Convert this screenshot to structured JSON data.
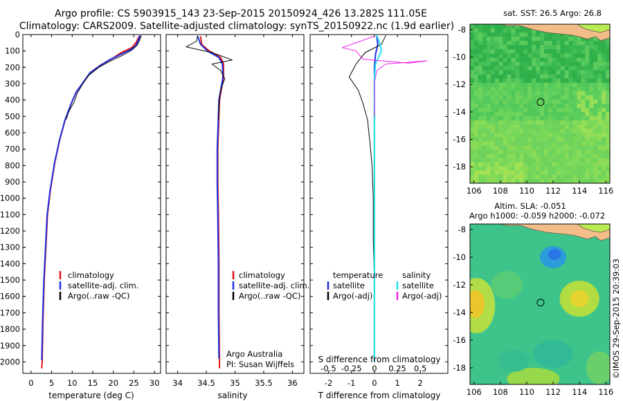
{
  "header": {
    "line1": "Argo profile: CS 5903915_143 23-Sep-2015 20150924_426 13.282S 111.05E",
    "line2": "Climatology: CARS2009. Satellite-adjusted climatology: synTS_20150922.nc (1.9d earlier)"
  },
  "colors": {
    "climatology": "#e01010",
    "satellite": "#1c2fe0",
    "argo": "#000000",
    "satellite_s": "#22e6ee",
    "argo_s": "#f022e8",
    "land": "#f3bd8a",
    "land_green": "#b8ec52"
  },
  "depth_axis": {
    "ticks": [
      0,
      100,
      200,
      300,
      400,
      500,
      600,
      700,
      800,
      900,
      1000,
      1100,
      1200,
      1300,
      1400,
      1500,
      1600,
      1700,
      1800,
      1900,
      2000
    ],
    "range": [
      0,
      2070
    ]
  },
  "chart_data": [
    {
      "type": "line",
      "id": "temperature",
      "xlabel": "temperature (deg C)",
      "xlim": [
        -2,
        31.5
      ],
      "xticks": [
        0,
        5,
        10,
        15,
        20,
        25,
        30
      ],
      "legend": [
        "climatology",
        "satellite-adj. clim.",
        "Argo(..raw -QC)"
      ],
      "series": [
        {
          "name": "climatology",
          "color": "#e01010",
          "width": 2,
          "points": [
            [
              26.3,
              10
            ],
            [
              25.5,
              50
            ],
            [
              24.5,
              80
            ],
            [
              22,
              110
            ],
            [
              19.5,
              150
            ],
            [
              17,
              185
            ],
            [
              14.5,
              230
            ],
            [
              12.5,
              300
            ],
            [
              11,
              350
            ],
            [
              9.8,
              420
            ],
            [
              8.3,
              520
            ],
            [
              7,
              640
            ],
            [
              5.8,
              780
            ],
            [
              4.7,
              950
            ],
            [
              4,
              1100
            ],
            [
              3.6,
              1300
            ],
            [
              3.2,
              1500
            ],
            [
              2.9,
              1750
            ],
            [
              2.7,
              2000
            ],
            [
              2.6,
              2040
            ]
          ]
        },
        {
          "name": "satellite-adj. clim.",
          "color": "#1c2fe0",
          "width": 2,
          "points": [
            [
              26.5,
              5
            ],
            [
              26.2,
              30
            ],
            [
              25.4,
              70
            ],
            [
              24,
              95
            ],
            [
              21.5,
              125
            ],
            [
              19,
              155
            ],
            [
              16.8,
              190
            ],
            [
              14.3,
              235
            ],
            [
              12.3,
              305
            ],
            [
              10.9,
              355
            ],
            [
              9.7,
              425
            ],
            [
              8.2,
              525
            ],
            [
              6.9,
              645
            ],
            [
              5.7,
              785
            ],
            [
              4.6,
              955
            ],
            [
              3.9,
              1105
            ],
            [
              3.5,
              1305
            ],
            [
              3.1,
              1505
            ],
            [
              2.8,
              1755
            ],
            [
              2.6,
              1990
            ]
          ]
        },
        {
          "name": "Argo(..raw -QC)",
          "color": "#000000",
          "width": 1,
          "points": [
            [
              26.8,
              5
            ],
            [
              26.4,
              35
            ],
            [
              25.8,
              65
            ],
            [
              24.5,
              95
            ],
            [
              22,
              130
            ],
            [
              19,
              165
            ],
            [
              16.5,
              200
            ],
            [
              14,
              250
            ],
            [
              12.6,
              300
            ],
            [
              11.2,
              360
            ],
            [
              10.5,
              410
            ],
            [
              9.2,
              470
            ],
            [
              8.5,
              520
            ]
          ]
        }
      ]
    },
    {
      "type": "line",
      "id": "salinity",
      "xlabel": "salinity",
      "xlim": [
        33.8,
        36.2
      ],
      "xticks": [
        34,
        34.5,
        35,
        35.5,
        36
      ],
      "legend": [
        "climatology",
        "satellite-adj. clim.",
        "Argo(..raw -QC)"
      ],
      "annotation": [
        "Argo Australia",
        "PI: Susan Wijffels"
      ],
      "series": [
        {
          "name": "climatology",
          "color": "#e01010",
          "width": 2,
          "points": [
            [
              34.4,
              10
            ],
            [
              34.42,
              60
            ],
            [
              34.55,
              100
            ],
            [
              34.75,
              140
            ],
            [
              34.8,
              180
            ],
            [
              34.8,
              260
            ],
            [
              34.76,
              340
            ],
            [
              34.73,
              400
            ],
            [
              34.72,
              500
            ],
            [
              34.7,
              700
            ],
            [
              34.7,
              900
            ],
            [
              34.71,
              1100
            ],
            [
              34.72,
              1400
            ],
            [
              34.72,
              1700
            ],
            [
              34.73,
              2000
            ],
            [
              34.73,
              2040
            ]
          ]
        },
        {
          "name": "satellite-adj. clim.",
          "color": "#1c2fe0",
          "width": 2,
          "points": [
            [
              34.35,
              10
            ],
            [
              34.4,
              60
            ],
            [
              34.52,
              100
            ],
            [
              34.72,
              140
            ],
            [
              34.78,
              180
            ],
            [
              34.79,
              260
            ],
            [
              34.75,
              340
            ],
            [
              34.72,
              400
            ],
            [
              34.71,
              500
            ],
            [
              34.69,
              700
            ],
            [
              34.69,
              900
            ],
            [
              34.7,
              1100
            ],
            [
              34.71,
              1400
            ],
            [
              34.71,
              1700
            ],
            [
              34.72,
              1980
            ]
          ]
        },
        {
          "name": "Argo(..raw -QC)",
          "color": "#000000",
          "width": 1,
          "points": [
            [
              34.35,
              5
            ],
            [
              34.33,
              40
            ],
            [
              34.15,
              75
            ],
            [
              34.4,
              95
            ],
            [
              34.6,
              110
            ],
            [
              34.95,
              155
            ],
            [
              34.6,
              180
            ],
            [
              34.75,
              220
            ],
            [
              34.82,
              270
            ],
            [
              34.76,
              330
            ],
            [
              34.73,
              380
            ],
            [
              34.72,
              450
            ],
            [
              34.71,
              520
            ]
          ]
        }
      ]
    },
    {
      "type": "line",
      "id": "difference",
      "xlabel": "T difference from climatology",
      "xlabel_top": "S difference from climatology",
      "xlim": [
        -2.8,
        3.2
      ],
      "xticks": [
        -2,
        -1,
        0,
        1,
        2
      ],
      "xticks_top": {
        "labels": [
          "-0.5",
          "-0.25",
          "0",
          "0.25",
          "0.5"
        ],
        "values": [
          -2,
          -1,
          0,
          1,
          2
        ]
      },
      "legend_left_title": "temperature",
      "legend_left": [
        "satellite",
        "Argo(-adj)"
      ],
      "legend_right_title": "salinity",
      "legend_right": [
        "satellite",
        "Argo(-adj)"
      ],
      "series": [
        {
          "name": "temperature satellite",
          "color": "#1c2fe0",
          "width": 2,
          "points": [
            [
              0.1,
              10
            ],
            [
              0.15,
              60
            ],
            [
              0.05,
              120
            ],
            [
              0,
              200
            ],
            [
              0,
              1000
            ],
            [
              0,
              2000
            ]
          ]
        },
        {
          "name": "temperature Argo(-adj)",
          "color": "#000000",
          "width": 1,
          "points": [
            [
              0.5,
              5
            ],
            [
              0.3,
              60
            ],
            [
              -0.4,
              110
            ],
            [
              -0.8,
              180
            ],
            [
              -1.1,
              260
            ],
            [
              -0.7,
              340
            ],
            [
              -0.5,
              420
            ],
            [
              -0.3,
              520
            ],
            [
              -0.2,
              650
            ],
            [
              -0.1,
              800
            ],
            [
              -0.05,
              1000
            ],
            [
              -0.05,
              1250
            ],
            [
              0,
              1500
            ],
            [
              0,
              1800
            ],
            [
              0,
              2000
            ]
          ]
        },
        {
          "name": "salinity satellite",
          "color": "#22e6ee",
          "width": 2,
          "points": [
            [
              0.1,
              5
            ],
            [
              0.25,
              60
            ],
            [
              0.3,
              100
            ],
            [
              0.05,
              180
            ],
            [
              0,
              260
            ],
            [
              0,
              1000
            ],
            [
              0,
              2000
            ]
          ]
        },
        {
          "name": "salinity Argo(-adj)",
          "color": "#f022e8",
          "width": 1,
          "points": [
            [
              0,
              10
            ],
            [
              -1.4,
              80
            ],
            [
              -0.8,
              100
            ],
            [
              -0.5,
              150
            ],
            [
              1.5,
              175
            ],
            [
              2.3,
              160
            ],
            [
              0.5,
              180
            ],
            [
              0.1,
              220
            ],
            [
              0,
              300
            ],
            [
              0.02,
              400
            ],
            [
              0,
              500
            ]
          ]
        }
      ]
    },
    {
      "type": "heatmap",
      "id": "sst-map",
      "title": "sat. SST: 26.5 Argo: 26.8",
      "xlim": [
        105.7,
        116.3
      ],
      "ylim": [
        -19.2,
        -7.6
      ],
      "xticks": [
        106,
        108,
        110,
        112,
        114,
        116
      ],
      "yticks": [
        -8,
        -10,
        -12,
        -14,
        -16,
        -18
      ],
      "marker": [
        111.05,
        -13.282
      ]
    },
    {
      "type": "heatmap",
      "id": "sla-map",
      "title": "Altim. SLA: -0.051",
      "subtitle": "Argo h1000: -0.059 h2000: -0.072",
      "xlim": [
        105.7,
        116.3
      ],
      "ylim": [
        -19.2,
        -7.6
      ],
      "xticks": [
        106,
        108,
        110,
        112,
        114,
        116
      ],
      "yticks": [
        -8,
        -10,
        -12,
        -14,
        -16,
        -18
      ],
      "marker": [
        111.05,
        -13.282
      ]
    }
  ],
  "footer": {
    "stamp": "©IMOS 29-Sep-2015 20:39:03"
  }
}
